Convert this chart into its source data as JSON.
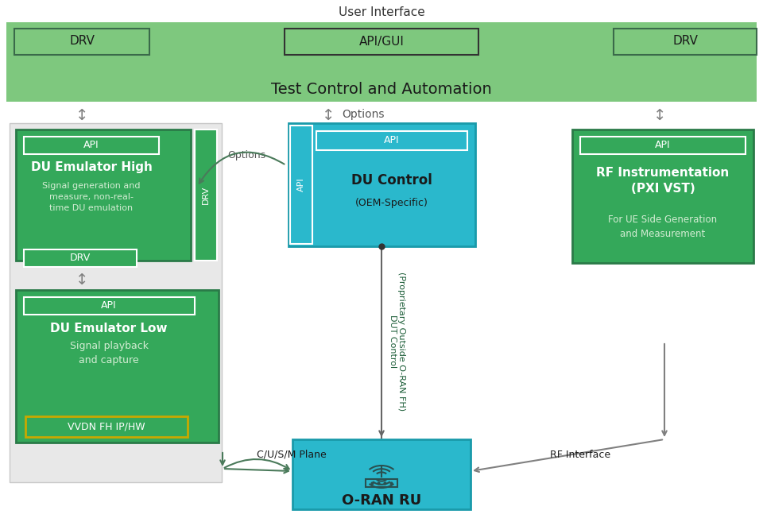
{
  "green_band": "#7ec87e",
  "green_box": "#34a85a",
  "green_box_edge": "#2a7a48",
  "cyan_box": "#2ab8cc",
  "cyan_box_edge": "#1a9aaa",
  "white": "#ffffff",
  "gray_bg": "#e8e8e8",
  "gray_bg_edge": "#c8c8c8",
  "yellow_border": "#c8a800",
  "text_dark": "#1a1a1a",
  "text_white": "#ffffff",
  "text_green_dark": "#1a5c36",
  "text_gray": "#555555",
  "arrow_color": "#4a7a5a",
  "arrow_gray": "#808080",
  "title_user_interface": "User Interface",
  "title_test_control": "Test Control and Automation",
  "label_drv_left": "DRV",
  "label_api_gui": "API/GUI",
  "label_drv_right": "DRV",
  "label_api_du_high": "API",
  "label_du_high_title": "DU Emulator High",
  "label_du_high_sub": "Signal generation and\nmeasure, non-real-\ntime DU emulation",
  "label_drv_inner": "DRV",
  "label_drv_side": "DRV",
  "label_api_du_low": "API",
  "label_du_low_title": "DU Emulator Low",
  "label_du_low_sub": "Signal playback\nand capture",
  "label_vvdn": "VVDN FH IP/HW",
  "label_api_du_ctrl": "API",
  "label_du_ctrl_title": "DU Control",
  "label_du_ctrl_sub": "(OEM-Specific)",
  "label_api_side_ctrl": "API",
  "label_options_top": "↕ Options",
  "label_options_curve": "Options",
  "label_dut_line1": "DUT Control",
  "label_dut_line2": "(Proprietary Outside O-RAN FH)",
  "label_api_rf": "API",
  "label_rf_title": "RF Instrumentation\n(PXI VST)",
  "label_rf_sub": "For UE Side Generation\nand Measurement",
  "label_oran_ru": "O-RAN RU",
  "label_cu_plane": "C/U/S/M Plane",
  "label_rf_interface": "RF Interface"
}
